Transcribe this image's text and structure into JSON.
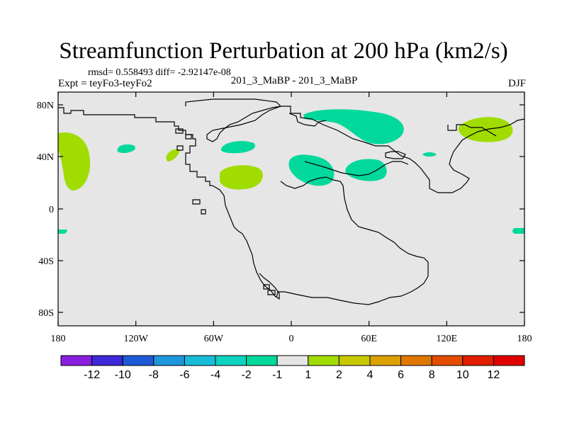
{
  "title": "Streamfunction Perturbation at 200 hPa (km2/s)",
  "stats": "rmsd= 0.558493 diff= -2.92147e-08",
  "experiment": "Expt = teyFo3-teyFo2",
  "center_label": "201_3_MaBP - 201_3_MaBP",
  "season": "DJF",
  "lat_ticks": [
    "80N",
    "40N",
    "0",
    "40S",
    "80S"
  ],
  "lon_ticks": [
    "180",
    "120W",
    "60W",
    "0",
    "60E",
    "120E",
    "180"
  ],
  "colorbar": {
    "labels": [
      "-12",
      "-10",
      "-8",
      "-6",
      "-4",
      "-2",
      "-1",
      "1",
      "2",
      "4",
      "6",
      "8",
      "10",
      "12"
    ],
    "colors": [
      "#8a1ee0",
      "#3c28d8",
      "#1e5ad8",
      "#1e96dc",
      "#18bcd8",
      "#10d2c0",
      "#00d89c",
      "#e6e6e6",
      "#a0dc00",
      "#c8c800",
      "#dca000",
      "#e07800",
      "#e44c00",
      "#e21e00",
      "#e00000"
    ]
  },
  "colors": {
    "background": "#e6e6e6",
    "positive": "#a0dc00",
    "negative": "#00d89c"
  }
}
